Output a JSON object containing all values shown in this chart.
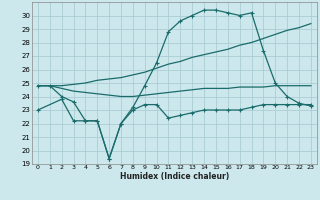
{
  "xlabel": "Humidex (Indice chaleur)",
  "bg_color": "#cce8ec",
  "grid_color": "#aacdd4",
  "line_color": "#1a6b6b",
  "xlim": [
    -0.5,
    23.5
  ],
  "ylim": [
    19,
    31
  ],
  "yticks": [
    19,
    20,
    21,
    22,
    23,
    24,
    25,
    26,
    27,
    28,
    29,
    30
  ],
  "xticks": [
    0,
    1,
    2,
    3,
    4,
    5,
    6,
    7,
    8,
    9,
    10,
    11,
    12,
    13,
    14,
    15,
    16,
    17,
    18,
    19,
    20,
    21,
    22,
    23
  ],
  "series1_x": [
    0,
    1,
    2,
    3,
    4,
    5,
    6,
    7,
    8,
    9,
    10,
    11,
    12,
    13,
    14,
    15,
    16,
    17,
    18,
    19,
    20,
    21,
    22,
    23
  ],
  "series1_y": [
    24.8,
    24.8,
    24.8,
    24.9,
    25.0,
    25.2,
    25.3,
    25.4,
    25.6,
    25.8,
    26.1,
    26.4,
    26.6,
    26.9,
    27.1,
    27.3,
    27.5,
    27.8,
    28.0,
    28.3,
    28.6,
    28.9,
    29.1,
    29.4
  ],
  "series2_x": [
    0,
    1,
    2,
    3,
    4,
    5,
    6,
    7,
    8,
    9,
    10,
    11,
    12,
    13,
    14,
    15,
    16,
    17,
    18,
    19,
    20,
    21,
    22,
    23
  ],
  "series2_y": [
    24.8,
    24.8,
    24.0,
    23.6,
    22.2,
    22.2,
    19.4,
    22.0,
    23.2,
    24.8,
    26.5,
    28.8,
    29.6,
    30.0,
    30.4,
    30.4,
    30.2,
    30.0,
    30.2,
    27.4,
    25.0,
    24.0,
    23.5,
    23.3
  ],
  "series3_x": [
    0,
    1,
    2,
    3,
    4,
    5,
    6,
    7,
    8,
    9,
    10,
    11,
    12,
    13,
    14,
    15,
    16,
    17,
    18,
    19,
    20,
    21,
    22,
    23
  ],
  "series3_y": [
    24.8,
    24.8,
    24.6,
    24.4,
    24.3,
    24.2,
    24.1,
    24.0,
    24.0,
    24.1,
    24.2,
    24.3,
    24.4,
    24.5,
    24.6,
    24.6,
    24.6,
    24.7,
    24.7,
    24.7,
    24.8,
    24.8,
    24.8,
    24.8
  ],
  "series4_x": [
    0,
    2,
    3,
    4,
    5,
    6,
    7,
    8,
    9,
    10,
    11,
    12,
    13,
    14,
    15,
    16,
    17,
    18,
    19,
    20,
    21,
    22,
    23
  ],
  "series4_y": [
    23.0,
    23.8,
    22.2,
    22.2,
    22.2,
    19.4,
    22.0,
    23.0,
    23.4,
    23.4,
    22.4,
    22.6,
    22.8,
    23.0,
    23.0,
    23.0,
    23.0,
    23.2,
    23.4,
    23.4,
    23.4,
    23.4,
    23.4
  ]
}
